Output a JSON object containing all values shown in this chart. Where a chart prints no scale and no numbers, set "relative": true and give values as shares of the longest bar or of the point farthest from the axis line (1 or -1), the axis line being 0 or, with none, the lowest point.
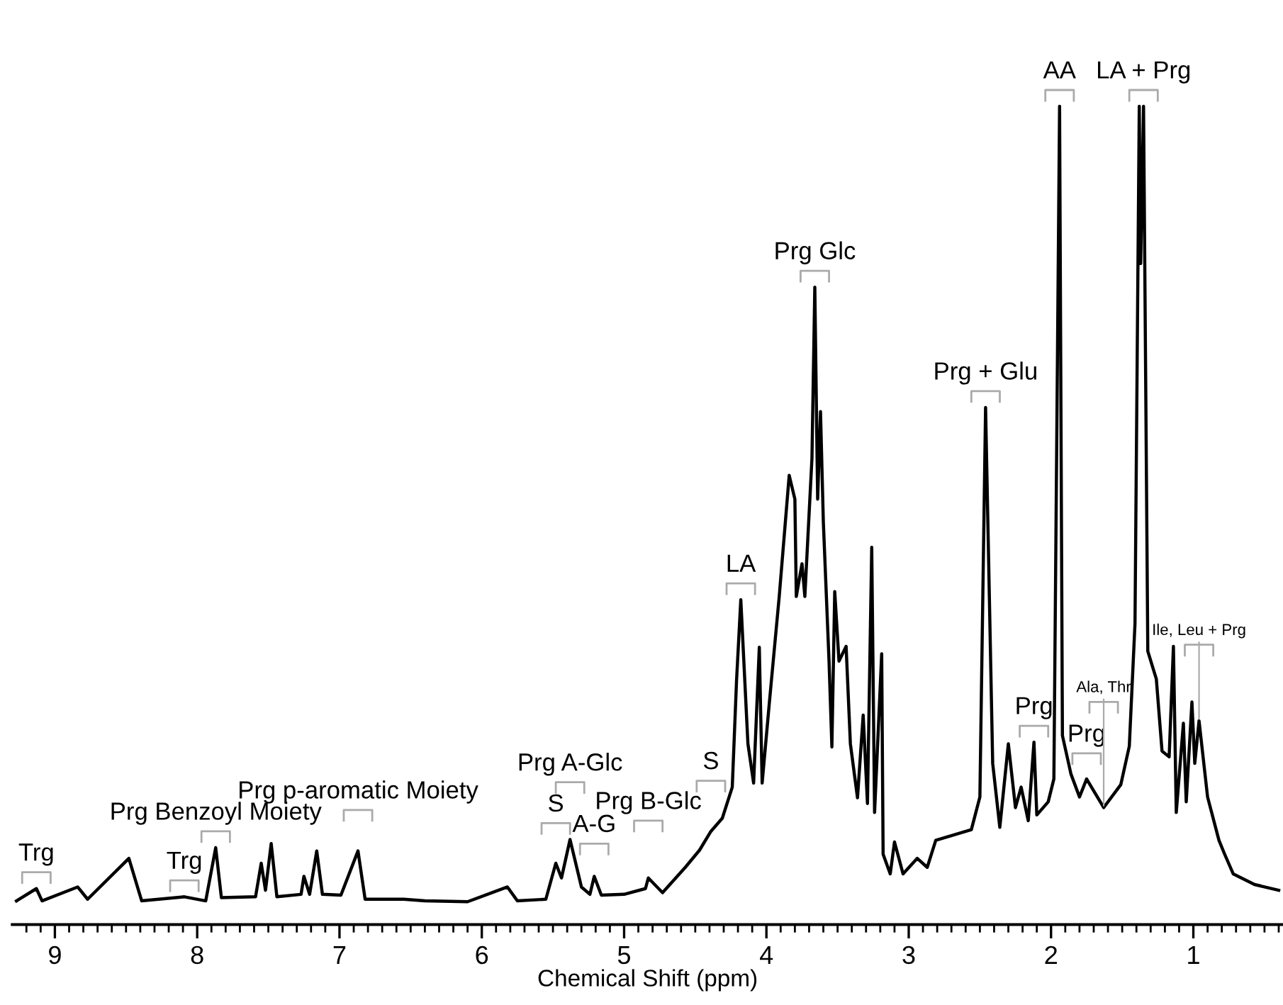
{
  "chart_data": {
    "type": "line",
    "relative": true,
    "xlabel": "Chemical Shift (ppm)",
    "color": "#000000",
    "grid": false,
    "legend": false,
    "marker": "none",
    "line_style": "solid",
    "xlim": [
      9.3,
      0.37
    ],
    "xticks": [
      9,
      8,
      7,
      6,
      5,
      4,
      3,
      2,
      1,
      {
        "value": 9.2,
        "label": null
      },
      {
        "value": 9.1,
        "label": null
      },
      {
        "value": 8.9,
        "label": null
      },
      {
        "value": 8.8,
        "label": null
      },
      {
        "value": 8.7,
        "label": null
      },
      {
        "value": 8.6,
        "label": null
      },
      {
        "value": 8.5,
        "label": null
      },
      {
        "value": 8.4,
        "label": null
      },
      {
        "value": 8.3,
        "label": null
      },
      {
        "value": 8.2,
        "label": null
      },
      {
        "value": 8.1,
        "label": null
      },
      {
        "value": 7.9,
        "label": null
      },
      {
        "value": 7.8,
        "label": null
      },
      {
        "value": 7.7,
        "label": null
      },
      {
        "value": 7.6,
        "label": null
      },
      {
        "value": 7.5,
        "label": null
      },
      {
        "value": 7.4,
        "label": null
      },
      {
        "value": 7.3,
        "label": null
      },
      {
        "value": 7.2,
        "label": null
      },
      {
        "value": 7.1,
        "label": null
      },
      {
        "value": 6.9,
        "label": null
      },
      {
        "value": 6.8,
        "label": null
      },
      {
        "value": 6.7,
        "label": null
      },
      {
        "value": 6.6,
        "label": null
      },
      {
        "value": 6.5,
        "label": null
      },
      {
        "value": 6.4,
        "label": null
      },
      {
        "value": 6.3,
        "label": null
      },
      {
        "value": 6.2,
        "label": null
      },
      {
        "value": 6.1,
        "label": null
      },
      {
        "value": 5.9,
        "label": null
      },
      {
        "value": 5.8,
        "label": null
      },
      {
        "value": 5.7,
        "label": null
      },
      {
        "value": 5.6,
        "label": null
      },
      {
        "value": 5.5,
        "label": null
      },
      {
        "value": 5.4,
        "label": null
      },
      {
        "value": 5.3,
        "label": null
      },
      {
        "value": 5.2,
        "label": null
      },
      {
        "value": 5.1,
        "label": null
      },
      {
        "value": 4.9,
        "label": null
      },
      {
        "value": 4.8,
        "label": null
      },
      {
        "value": 4.7,
        "label": null
      },
      {
        "value": 4.6,
        "label": null
      },
      {
        "value": 4.5,
        "label": null
      },
      {
        "value": 4.4,
        "label": null
      },
      {
        "value": 4.3,
        "label": null
      },
      {
        "value": 4.2,
        "label": null
      },
      {
        "value": 4.1,
        "label": null
      },
      {
        "value": 3.9,
        "label": null
      },
      {
        "value": 3.8,
        "label": null
      },
      {
        "value": 3.7,
        "label": null
      },
      {
        "value": 3.6,
        "label": null
      },
      {
        "value": 3.5,
        "label": null
      },
      {
        "value": 3.4,
        "label": null
      },
      {
        "value": 3.3,
        "label": null
      },
      {
        "value": 3.2,
        "label": null
      },
      {
        "value": 3.1,
        "label": null
      },
      {
        "value": 2.9,
        "label": null
      },
      {
        "value": 2.8,
        "label": null
      },
      {
        "value": 2.7,
        "label": null
      },
      {
        "value": 2.6,
        "label": null
      },
      {
        "value": 2.5,
        "label": null
      },
      {
        "value": 2.4,
        "label": null
      },
      {
        "value": 2.3,
        "label": null
      },
      {
        "value": 2.2,
        "label": null
      },
      {
        "value": 2.1,
        "label": null
      },
      {
        "value": 1.9,
        "label": null
      },
      {
        "value": 1.8,
        "label": null
      },
      {
        "value": 1.7,
        "label": null
      },
      {
        "value": 1.6,
        "label": null
      },
      {
        "value": 1.5,
        "label": null
      },
      {
        "value": 1.4,
        "label": null
      },
      {
        "value": 1.3,
        "label": null
      },
      {
        "value": 1.2,
        "label": null
      },
      {
        "value": 1.1,
        "label": null
      },
      {
        "value": 0.9,
        "label": null
      },
      {
        "value": 0.8,
        "label": null
      },
      {
        "value": 0.7,
        "label": null
      },
      {
        "value": 0.6,
        "label": null
      },
      {
        "value": 0.5,
        "label": null
      },
      {
        "value": 0.4,
        "label": null
      }
    ],
    "x": [
      9.27,
      9.13,
      9.09,
      8.84,
      8.77,
      8.48,
      8.39,
      8.09,
      7.94,
      7.87,
      7.83,
      7.59,
      7.55,
      7.52,
      7.48,
      7.44,
      7.27,
      7.25,
      7.21,
      7.16,
      7.12,
      6.99,
      6.87,
      6.82,
      6.55,
      6.4,
      6.1,
      5.82,
      5.75,
      5.55,
      5.48,
      5.44,
      5.38,
      5.3,
      5.24,
      5.21,
      5.16,
      5.0,
      4.85,
      4.83,
      4.73,
      4.57,
      4.47,
      4.39,
      4.31,
      4.24,
      4.21,
      4.18,
      4.13,
      4.09,
      4.05,
      4.03,
      3.98,
      3.91,
      3.84,
      3.8,
      3.79,
      3.75,
      3.73,
      3.68,
      3.66,
      3.64,
      3.62,
      3.6,
      3.56,
      3.54,
      3.52,
      3.49,
      3.44,
      3.41,
      3.36,
      3.32,
      3.29,
      3.26,
      3.24,
      3.19,
      3.18,
      3.13,
      3.1,
      3.04,
      2.94,
      2.87,
      2.81,
      2.56,
      2.5,
      2.46,
      2.41,
      2.36,
      2.3,
      2.25,
      2.21,
      2.16,
      2.12,
      2.1,
      2.02,
      1.98,
      1.94,
      1.92,
      1.86,
      1.8,
      1.75,
      1.63,
      1.51,
      1.45,
      1.41,
      1.38,
      1.37,
      1.35,
      1.32,
      1.26,
      1.22,
      1.17,
      1.14,
      1.12,
      1.07,
      1.05,
      1.01,
      0.99,
      0.96,
      0.9,
      0.82,
      0.78,
      0.72,
      0.57,
      0.4
    ],
    "values": [
      0.029,
      0.044,
      0.029,
      0.046,
      0.031,
      0.081,
      0.029,
      0.034,
      0.029,
      0.094,
      0.033,
      0.034,
      0.075,
      0.042,
      0.099,
      0.034,
      0.037,
      0.059,
      0.037,
      0.09,
      0.037,
      0.036,
      0.09,
      0.031,
      0.031,
      0.029,
      0.028,
      0.046,
      0.029,
      0.031,
      0.075,
      0.057,
      0.104,
      0.046,
      0.037,
      0.059,
      0.036,
      0.037,
      0.044,
      0.057,
      0.039,
      0.07,
      0.091,
      0.114,
      0.13,
      0.168,
      0.298,
      0.397,
      0.221,
      0.173,
      0.339,
      0.173,
      0.27,
      0.401,
      0.549,
      0.52,
      0.401,
      0.441,
      0.401,
      0.57,
      0.779,
      0.52,
      0.627,
      0.492,
      0.322,
      0.217,
      0.407,
      0.322,
      0.34,
      0.221,
      0.155,
      0.256,
      0.148,
      0.461,
      0.137,
      0.331,
      0.086,
      0.062,
      0.101,
      0.062,
      0.081,
      0.07,
      0.103,
      0.116,
      0.156,
      0.632,
      0.197,
      0.119,
      0.221,
      0.143,
      0.168,
      0.127,
      0.223,
      0.134,
      0.15,
      0.178,
      1.0,
      0.231,
      0.184,
      0.156,
      0.178,
      0.143,
      0.171,
      0.218,
      0.368,
      1.0,
      0.808,
      1.0,
      0.334,
      0.3,
      0.212,
      0.205,
      0.34,
      0.137,
      0.246,
      0.15,
      0.272,
      0.197,
      0.249,
      0.156,
      0.103,
      0.086,
      0.062,
      0.049,
      0.042
    ],
    "annotations": [
      {
        "text": "Trg",
        "x": 9.13,
        "y": 0.044
      },
      {
        "text": "Trg",
        "x": 8.09,
        "y": 0.034
      },
      {
        "text": "Prg Benzoyl Moiety",
        "x": 7.87,
        "y": 0.094
      },
      {
        "text": "Prg p-aromatic Moiety",
        "x": 6.87,
        "y": 0.09
      },
      {
        "text": "S",
        "x": 5.48,
        "y": 0.075
      },
      {
        "text": "A-G",
        "x": 5.21,
        "y": 0.059
      },
      {
        "text": "Prg A-Glc",
        "x": 5.38,
        "y": 0.104
      },
      {
        "text": "Prg B-Glc",
        "x": 4.83,
        "y": 0.057
      },
      {
        "text": "S",
        "x": 4.39,
        "y": 0.114
      },
      {
        "text": "LA",
        "x": 4.18,
        "y": 0.397
      },
      {
        "text": "Prg Glc",
        "x": 3.66,
        "y": 0.779
      },
      {
        "text": "Prg + Glu",
        "x": 2.46,
        "y": 0.632
      },
      {
        "text": "Prg",
        "x": 2.12,
        "y": 0.223
      },
      {
        "text": "AA",
        "x": 1.94,
        "y": 1.0
      },
      {
        "text": "LA + Prg",
        "x": 1.35,
        "y": 1.0
      },
      {
        "text": "Prg",
        "x": 1.75,
        "y": 0.178
      },
      {
        "text": "Ala, Thr",
        "x": 1.63,
        "y": 0.143
      },
      {
        "text": "Ile, Leu + Prg",
        "x": 0.96,
        "y": 0.249
      }
    ]
  }
}
